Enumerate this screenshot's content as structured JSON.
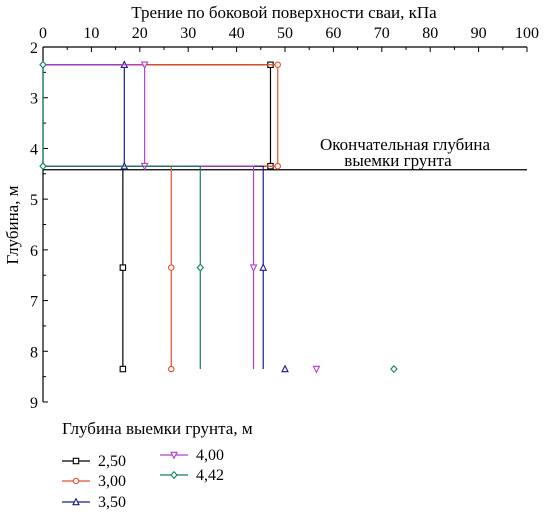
{
  "chart_data": {
    "type": "line",
    "title": "",
    "xlabel": "Трение по боковой поверхности сваи, кПа",
    "ylabel": "Глубина, м",
    "xlim": [
      0,
      100
    ],
    "ylim": [
      2,
      9
    ],
    "y_inverted": true,
    "x_axis_position": "top",
    "x_ticks": [
      "0",
      "10",
      "20",
      "30",
      "40",
      "50",
      "60",
      "70",
      "80",
      "90",
      "100"
    ],
    "y_ticks": [
      "2",
      "3",
      "4",
      "5",
      "6",
      "7",
      "8",
      "9"
    ],
    "grid": false,
    "reference_line": {
      "y": 4.42,
      "label_line1": "Окончательная глубина",
      "label_line2": "выемки грунта"
    },
    "legend": {
      "title": "Глубина выемки грунта, м",
      "placement": "bottom-left"
    },
    "series": [
      {
        "name": "2,50",
        "color": "#000000",
        "marker": "square",
        "points": [
          [
            47.0,
            2.35
          ],
          [
            47.0,
            4.35
          ],
          [
            16.5,
            6.35
          ],
          [
            16.5,
            8.35
          ]
        ],
        "connector_depths": [
          4.35,
          6.35
        ]
      },
      {
        "name": "3,00",
        "color": "#e8502a",
        "marker": "circle",
        "points": [
          [
            48.5,
            2.35
          ],
          [
            48.5,
            4.35
          ],
          [
            26.5,
            6.35
          ],
          [
            26.5,
            8.35
          ]
        ],
        "connector_depths": [
          4.35,
          6.35
        ]
      },
      {
        "name": "3,50",
        "color": "#1c1c8c",
        "marker": "triangle-up",
        "points": [
          [
            16.8,
            2.35
          ],
          [
            16.8,
            4.35
          ],
          [
            45.5,
            6.35
          ],
          [
            50.0,
            8.35
          ]
        ],
        "connector_depths": [
          4.35,
          6.35
        ]
      },
      {
        "name": "4,00",
        "color": "#b040c8",
        "marker": "triangle-down",
        "points": [
          [
            21.0,
            2.35
          ],
          [
            21.0,
            4.35
          ],
          [
            43.5,
            6.35
          ],
          [
            56.5,
            8.35
          ]
        ],
        "connector_depths": [
          4.35,
          6.35
        ]
      },
      {
        "name": "4,42",
        "color": "#148060",
        "marker": "diamond",
        "points": [
          [
            0.0,
            2.35
          ],
          [
            0.0,
            4.35
          ],
          [
            32.5,
            6.35
          ],
          [
            72.5,
            8.35
          ]
        ],
        "connector_depths": [
          4.35,
          6.35
        ]
      }
    ]
  }
}
